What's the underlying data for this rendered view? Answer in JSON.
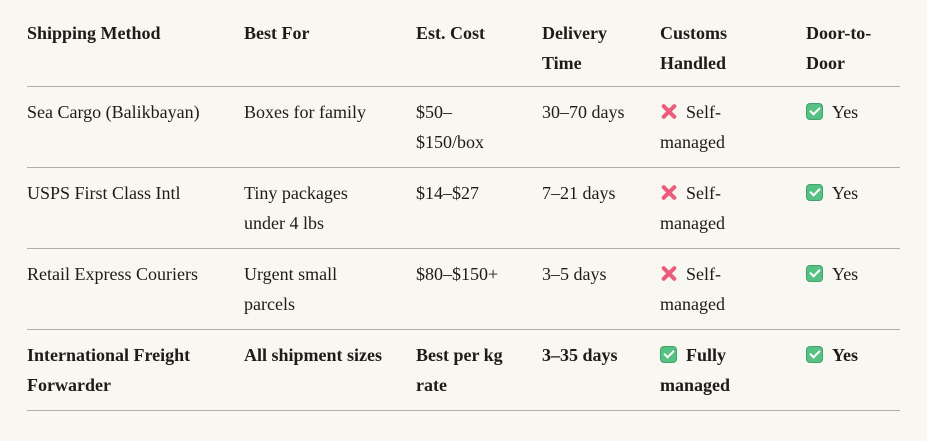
{
  "colors": {
    "background": "#f9f7f1",
    "text": "#1e1b18",
    "border": "#b0aea7",
    "x_red": "#ec5b7c",
    "check_green": "#57c183",
    "check_green_border": "#3fa36b"
  },
  "table": {
    "columns": [
      {
        "label": "Shipping Method"
      },
      {
        "label": "Best For"
      },
      {
        "label": "Est. Cost"
      },
      {
        "label": "Delivery Time"
      },
      {
        "label": "Customs Handled"
      },
      {
        "label": "Door-to-Door"
      }
    ],
    "rows": [
      {
        "method": "Sea Cargo (Balikbayan)",
        "best_for": "Boxes for family",
        "est_cost": "$50–$150/box",
        "delivery": "30–70 days",
        "customs": {
          "icon": "x-mark",
          "label": "Self-managed"
        },
        "door": {
          "icon": "check-mark",
          "label": "Yes"
        },
        "emphasized": false
      },
      {
        "method": "USPS First Class Intl",
        "best_for": "Tiny packages under 4 lbs",
        "est_cost": "$14–$27",
        "delivery": "7–21 days",
        "customs": {
          "icon": "x-mark",
          "label": "Self-managed"
        },
        "door": {
          "icon": "check-mark",
          "label": "Yes"
        },
        "emphasized": false
      },
      {
        "method": "Retail Express Couriers",
        "best_for": "Urgent small parcels",
        "est_cost": "$80–$150+",
        "delivery": "3–5 days",
        "customs": {
          "icon": "x-mark",
          "label": "Self-managed"
        },
        "door": {
          "icon": "check-mark",
          "label": "Yes"
        },
        "emphasized": false
      },
      {
        "method": "International Freight Forwarder",
        "best_for": "All shipment sizes",
        "est_cost": "Best per kg rate",
        "delivery": "3–35 days",
        "customs": {
          "icon": "check-mark",
          "label": "Fully managed"
        },
        "door": {
          "icon": "check-mark",
          "label": "Yes"
        },
        "emphasized": true
      }
    ]
  }
}
